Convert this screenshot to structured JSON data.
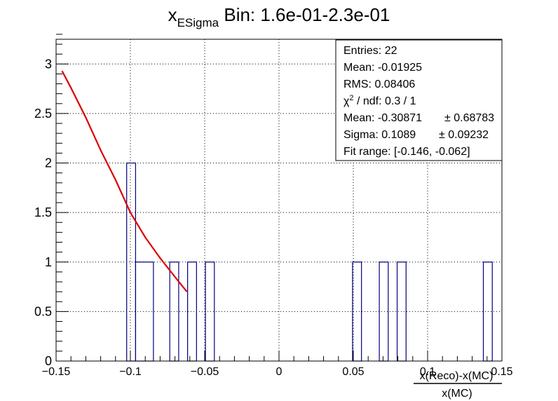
{
  "title": {
    "main": "x",
    "sub": "ESigma",
    "rest": " Bin: 1.6e-01-2.3e-01"
  },
  "stats": {
    "entries": "Entries: 22",
    "mean": "Mean: -0.01925",
    "rms": "RMS: 0.08406",
    "chi_pre": "χ",
    "chi_sup": "2",
    "chi_post": " / ndf: 0.3 / 1",
    "fit_mean": "Mean: -0.30871",
    "fit_mean_err": "± 0.68783",
    "fit_sigma": "Sigma: 0.1089",
    "fit_sigma_err": "± 0.09232",
    "fit_range": "Fit range: [-0.146, -0.062]"
  },
  "xlabel": {
    "numerator": "x(Reco)-x(MC)",
    "denominator": "x(MC)"
  },
  "colors": {
    "histogram": "#000080",
    "fit": "#dd0000",
    "axis": "#000000",
    "grid": "#000000"
  },
  "chart_data": {
    "type": "bar",
    "xlim": [
      -0.15,
      0.15
    ],
    "ylim": [
      0,
      3.25
    ],
    "grid": true,
    "x_ticks": [
      {
        "v": -0.15,
        "label": "−0.15"
      },
      {
        "v": -0.1,
        "label": "−0.1"
      },
      {
        "v": -0.05,
        "label": "−0.05"
      },
      {
        "v": 0,
        "label": "0"
      },
      {
        "v": 0.05,
        "label": "0.05"
      },
      {
        "v": 0.1,
        "label": "0.1"
      },
      {
        "v": 0.15,
        "label": "0.15"
      }
    ],
    "y_ticks": [
      {
        "v": 0,
        "label": "0"
      },
      {
        "v": 0.5,
        "label": "0.5"
      },
      {
        "v": 1,
        "label": "1"
      },
      {
        "v": 1.5,
        "label": "1.5"
      },
      {
        "v": 2,
        "label": "2"
      },
      {
        "v": 2.5,
        "label": "2.5"
      },
      {
        "v": 3,
        "label": "3"
      }
    ],
    "bins": [
      {
        "lo": -0.1025,
        "hi": -0.0965,
        "count": 2
      },
      {
        "lo": -0.0965,
        "hi": -0.0845,
        "count": 1
      },
      {
        "lo": -0.0735,
        "hi": -0.0675,
        "count": 1
      },
      {
        "lo": -0.0615,
        "hi": -0.0555,
        "count": 1
      },
      {
        "lo": -0.0495,
        "hi": -0.0435,
        "count": 1
      },
      {
        "lo": 0.0495,
        "hi": 0.0555,
        "count": 1
      },
      {
        "lo": 0.0675,
        "hi": 0.0735,
        "count": 1
      },
      {
        "lo": 0.0795,
        "hi": 0.0855,
        "count": 1
      },
      {
        "lo": 0.1375,
        "hi": 0.1435,
        "count": 1
      }
    ],
    "fit": {
      "function": "gaus",
      "mean": -0.30871,
      "sigma": 0.1089,
      "range": [
        -0.146,
        -0.062
      ],
      "points": [
        [
          -0.146,
          2.93
        ],
        [
          -0.14,
          2.76
        ],
        [
          -0.13,
          2.46
        ],
        [
          -0.12,
          2.13
        ],
        [
          -0.11,
          1.83
        ],
        [
          -0.1,
          1.5
        ],
        [
          -0.09,
          1.25
        ],
        [
          -0.08,
          1.04
        ],
        [
          -0.07,
          0.85
        ],
        [
          -0.062,
          0.7
        ]
      ]
    }
  }
}
